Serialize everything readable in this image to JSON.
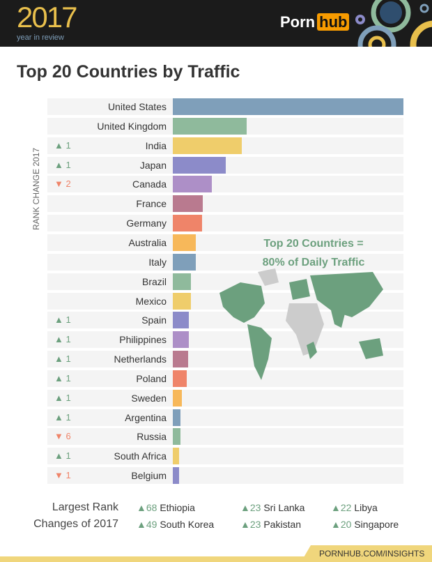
{
  "header": {
    "year": "2017",
    "subtitle": "year in review",
    "logo_left": "Porn",
    "logo_right": "hub"
  },
  "chart_data": {
    "type": "bar",
    "orientation": "horizontal",
    "title": "Top 20 Countries by Traffic",
    "rank_axis_label": "RANK CHANGE 2017",
    "categories": [
      "United States",
      "United Kingdom",
      "India",
      "Japan",
      "Canada",
      "France",
      "Germany",
      "Australia",
      "Italy",
      "Brazil",
      "Mexico",
      "Spain",
      "Philippines",
      "Netherlands",
      "Poland",
      "Sweden",
      "Argentina",
      "Russia",
      "South Africa",
      "Belgium"
    ],
    "values": [
      100,
      32,
      30,
      23,
      17,
      13,
      12.7,
      10,
      10,
      8,
      8,
      7,
      7,
      6.6,
      6,
      4,
      3.3,
      3.3,
      2.7,
      2.7
    ],
    "rank_changes": [
      null,
      null,
      {
        "dir": "up",
        "n": "1"
      },
      {
        "dir": "up",
        "n": "1"
      },
      {
        "dir": "down",
        "n": "2"
      },
      null,
      null,
      null,
      null,
      null,
      null,
      {
        "dir": "up",
        "n": "1"
      },
      {
        "dir": "up",
        "n": "1"
      },
      {
        "dir": "up",
        "n": "1"
      },
      {
        "dir": "up",
        "n": "1"
      },
      {
        "dir": "up",
        "n": "1"
      },
      {
        "dir": "up",
        "n": "1"
      },
      {
        "dir": "down",
        "n": "6"
      },
      {
        "dir": "up",
        "n": "1"
      },
      {
        "dir": "down",
        "n": "1"
      }
    ],
    "colors": [
      "#7f9fba",
      "#8fba9c",
      "#efcd6b",
      "#8c8bc9",
      "#ad8fc7",
      "#b97a8f",
      "#ef8469",
      "#f7b85a"
    ],
    "annotation": [
      "Top 20 Countries =",
      "80% of Daily Traffic"
    ]
  },
  "changes": {
    "label": [
      "Largest Rank",
      "Changes of 2017"
    ],
    "items": [
      {
        "n": "68",
        "name": "Ethiopia"
      },
      {
        "n": "49",
        "name": "South Korea"
      },
      {
        "n": "23",
        "name": "Sri Lanka"
      },
      {
        "n": "23",
        "name": "Pakistan"
      },
      {
        "n": "22",
        "name": "Libya"
      },
      {
        "n": "20",
        "name": "Singapore"
      }
    ]
  },
  "footer": {
    "link": "PORNHUB.COM/INSIGHTS"
  }
}
